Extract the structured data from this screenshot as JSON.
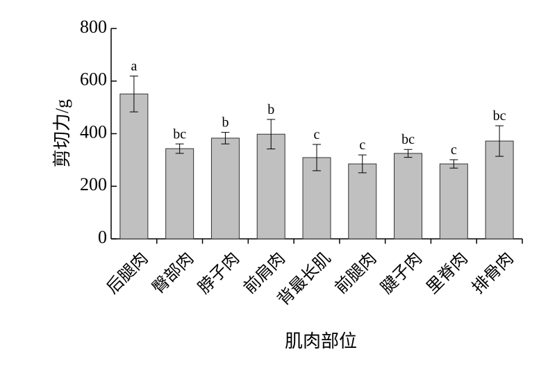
{
  "chart_data": {
    "type": "bar",
    "x_label": "肌肉部位",
    "y_label": "剪切力/g",
    "categories": [
      "后腿肉",
      "臀部肉",
      "脖子肉",
      "前肩肉",
      "背最长肌",
      "前腿肉",
      "腱子肉",
      "里脊肉",
      "排骨肉"
    ],
    "values": [
      551,
      343,
      383,
      398,
      309,
      285,
      325,
      285,
      372
    ],
    "errors": [
      68,
      18,
      22,
      56,
      50,
      34,
      15,
      16,
      58
    ],
    "letters": [
      "a",
      "bc",
      "b",
      "b",
      "c",
      "c",
      "bc",
      "c",
      "bc"
    ],
    "color": "#c0c0c0",
    "ylim": [
      0,
      800
    ],
    "yticks": [
      0,
      200,
      400,
      600,
      800
    ]
  }
}
